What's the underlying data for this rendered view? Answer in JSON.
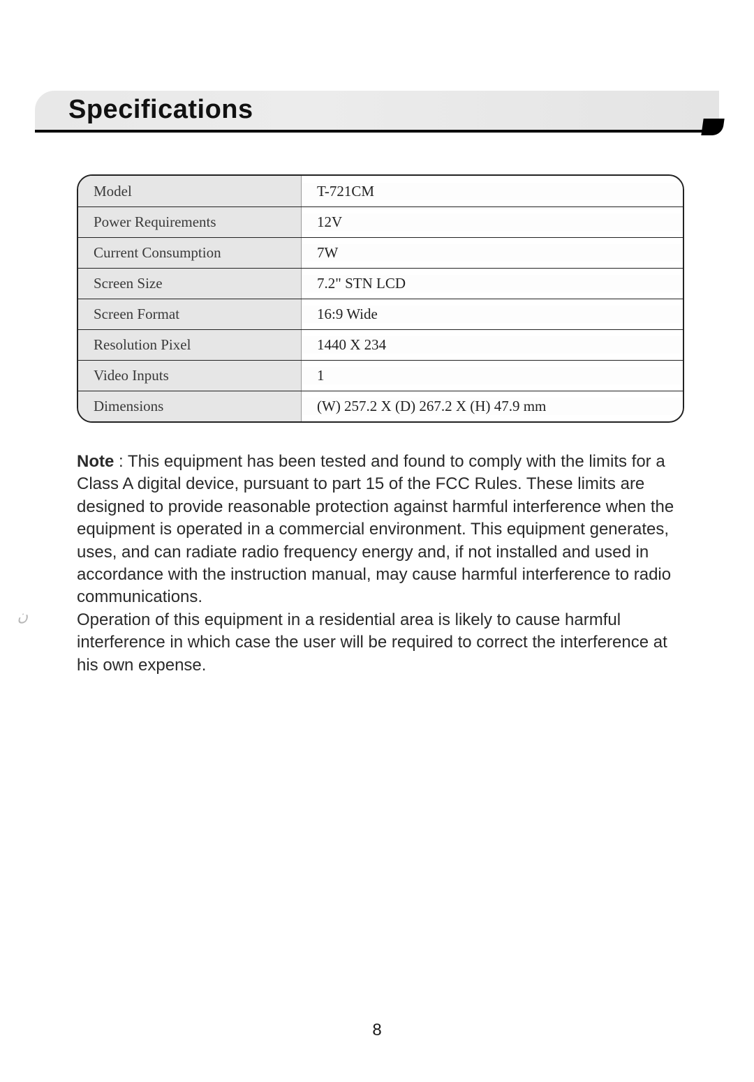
{
  "title": "Specifications",
  "table_rows": [
    {
      "label": "Model",
      "value": "T-721CM"
    },
    {
      "label": "Power Requirements",
      "value": "12V"
    },
    {
      "label": "Current Consumption",
      "value": "7W"
    },
    {
      "label": "Screen Size",
      "value": "7.2\" STN LCD"
    },
    {
      "label": "Screen Format",
      "value": "16:9 Wide"
    },
    {
      "label": "Resolution Pixel",
      "value": "1440 X 234"
    },
    {
      "label": "Video Inputs",
      "value": "1"
    },
    {
      "label": "Dimensions",
      "value": "(W) 257.2 X (D) 267.2 X (H) 47.9 mm"
    }
  ],
  "note_label": "Note",
  "note_sep": " : ",
  "note_body": "This equipment has been tested and found to comply with the limits for a Class A digital device, pursuant to part 15 of the FCC Rules. These limits are designed to provide reasonable protection against harmful interference when the equipment is operated in a commercial environment. This equipment generates, uses, and can radiate radio frequency energy and, if not installed and used in accordance with the instruction manual, may cause harmful interference to radio communications.\nOperation of this equipment in a residential area is likely to cause harmful interference in which case the user will be required to correct the interference at his own expense.",
  "page_number": "8",
  "colors": {
    "title_bg": "#e8e8e8",
    "title_underline": "#000000",
    "label_bg": "#e6e6e6",
    "value_bg": "#fdfdfd",
    "border": "#222222",
    "text": "#1a1a1a"
  }
}
